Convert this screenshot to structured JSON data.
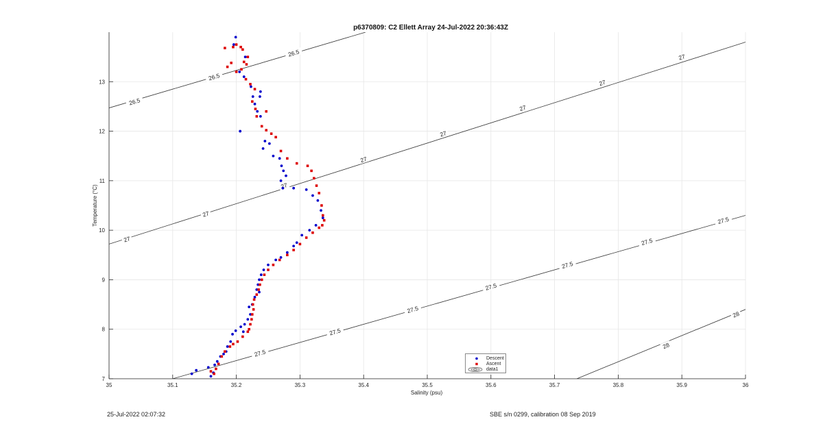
{
  "chart_data": {
    "type": "scatter",
    "title": "p6370809: C2 Ellett Array 24-Jul-2022 20:36:43Z",
    "xlabel": "Salinity (psu)",
    "ylabel": "Temperature (°C)",
    "xlim": [
      35,
      36
    ],
    "ylim": [
      7,
      14
    ],
    "x_ticks": [
      "35",
      "35.1",
      "35.2",
      "35.3",
      "35.4",
      "35.5",
      "35.6",
      "35.7",
      "35.8",
      "35.9",
      "36"
    ],
    "y_ticks": [
      "7",
      "8",
      "9",
      "10",
      "11",
      "12",
      "13"
    ],
    "grid": true,
    "legend_position": "bottom-center",
    "colors": {
      "descent": "#0000cc",
      "ascent": "#dd0000",
      "contour": "#333333",
      "grid": "#e6e6e6"
    },
    "series": [
      {
        "name": "Descent",
        "marker": "dot",
        "points": [
          [
            35.199,
            13.9
          ],
          [
            35.196,
            13.75
          ],
          [
            35.214,
            13.5
          ],
          [
            35.205,
            13.2
          ],
          [
            35.212,
            13.1
          ],
          [
            35.223,
            12.9
          ],
          [
            35.226,
            12.7
          ],
          [
            35.238,
            12.8
          ],
          [
            35.237,
            12.7
          ],
          [
            35.229,
            12.55
          ],
          [
            35.233,
            12.4
          ],
          [
            35.238,
            12.3
          ],
          [
            35.206,
            12.0
          ],
          [
            35.245,
            11.8
          ],
          [
            35.252,
            11.75
          ],
          [
            35.242,
            11.65
          ],
          [
            35.258,
            11.5
          ],
          [
            35.268,
            11.45
          ],
          [
            35.271,
            11.3
          ],
          [
            35.274,
            11.2
          ],
          [
            35.278,
            11.1
          ],
          [
            35.27,
            11.0
          ],
          [
            35.273,
            10.85
          ],
          [
            35.29,
            10.85
          ],
          [
            35.31,
            10.82
          ],
          [
            35.32,
            10.7
          ],
          [
            35.328,
            10.6
          ],
          [
            35.333,
            10.4
          ],
          [
            35.336,
            10.25
          ],
          [
            35.325,
            10.1
          ],
          [
            35.315,
            10.0
          ],
          [
            35.303,
            9.9
          ],
          [
            35.295,
            9.75
          ],
          [
            35.29,
            9.68
          ],
          [
            35.28,
            9.55
          ],
          [
            35.27,
            9.45
          ],
          [
            35.262,
            9.4
          ],
          [
            35.25,
            9.3
          ],
          [
            35.243,
            9.2
          ],
          [
            35.239,
            9.1
          ],
          [
            35.236,
            9.0
          ],
          [
            35.234,
            8.9
          ],
          [
            35.232,
            8.8
          ],
          [
            35.236,
            8.75
          ],
          [
            35.229,
            8.65
          ],
          [
            35.225,
            8.5
          ],
          [
            35.22,
            8.45
          ],
          [
            35.222,
            8.3
          ],
          [
            35.218,
            8.2
          ],
          [
            35.213,
            8.1
          ],
          [
            35.207,
            8.05
          ],
          [
            35.211,
            7.95
          ],
          [
            35.199,
            7.97
          ],
          [
            35.194,
            7.9
          ],
          [
            35.191,
            7.75
          ],
          [
            35.186,
            7.65
          ],
          [
            35.184,
            7.55
          ],
          [
            35.18,
            7.5
          ],
          [
            35.175,
            7.45
          ],
          [
            35.17,
            7.35
          ],
          [
            35.166,
            7.28
          ],
          [
            35.156,
            7.23
          ],
          [
            35.164,
            7.12
          ],
          [
            35.137,
            7.17
          ],
          [
            35.13,
            7.1
          ],
          [
            35.16,
            7.05
          ]
        ]
      },
      {
        "name": "Ascent",
        "marker": "square",
        "points": [
          [
            35.2,
            13.75
          ],
          [
            35.195,
            13.7
          ],
          [
            35.182,
            13.68
          ],
          [
            35.207,
            13.7
          ],
          [
            35.21,
            13.65
          ],
          [
            35.218,
            13.5
          ],
          [
            35.212,
            13.4
          ],
          [
            35.216,
            13.35
          ],
          [
            35.192,
            13.38
          ],
          [
            35.186,
            13.3
          ],
          [
            35.208,
            13.25
          ],
          [
            35.2,
            13.2
          ],
          [
            35.215,
            13.05
          ],
          [
            35.222,
            12.95
          ],
          [
            35.229,
            12.85
          ],
          [
            35.225,
            12.6
          ],
          [
            35.23,
            12.45
          ],
          [
            35.247,
            12.4
          ],
          [
            35.232,
            12.3
          ],
          [
            35.24,
            12.1
          ],
          [
            35.247,
            12.02
          ],
          [
            35.255,
            11.95
          ],
          [
            35.262,
            11.88
          ],
          [
            35.27,
            11.6
          ],
          [
            35.28,
            11.45
          ],
          [
            35.295,
            11.35
          ],
          [
            35.312,
            11.3
          ],
          [
            35.318,
            11.2
          ],
          [
            35.322,
            11.05
          ],
          [
            35.326,
            10.9
          ],
          [
            35.33,
            10.75
          ],
          [
            35.334,
            10.5
          ],
          [
            35.336,
            10.3
          ],
          [
            35.338,
            10.2
          ],
          [
            35.335,
            10.1
          ],
          [
            35.33,
            10.05
          ],
          [
            35.32,
            9.95
          ],
          [
            35.31,
            9.85
          ],
          [
            35.3,
            9.72
          ],
          [
            35.29,
            9.6
          ],
          [
            35.28,
            9.5
          ],
          [
            35.268,
            9.4
          ],
          [
            35.258,
            9.3
          ],
          [
            35.25,
            9.2
          ],
          [
            35.244,
            9.1
          ],
          [
            35.24,
            9.0
          ],
          [
            35.237,
            8.9
          ],
          [
            35.235,
            8.8
          ],
          [
            35.232,
            8.7
          ],
          [
            35.228,
            8.6
          ],
          [
            35.226,
            8.5
          ],
          [
            35.227,
            8.4
          ],
          [
            35.225,
            8.3
          ],
          [
            35.224,
            8.2
          ],
          [
            35.222,
            8.1
          ],
          [
            35.22,
            8.0
          ],
          [
            35.218,
            7.95
          ],
          [
            35.21,
            7.85
          ],
          [
            35.202,
            7.75
          ],
          [
            35.195,
            7.7
          ],
          [
            35.19,
            7.65
          ],
          [
            35.182,
            7.55
          ],
          [
            35.177,
            7.45
          ],
          [
            35.172,
            7.3
          ],
          [
            35.168,
            7.2
          ],
          [
            35.165,
            7.1
          ],
          [
            35.16,
            7.15
          ]
        ]
      }
    ],
    "legend_extra": "data1",
    "contours": [
      {
        "level": "26.5",
        "points": [
          [
            35,
            12.47
          ],
          [
            35.403,
            14.0
          ]
        ]
      },
      {
        "level": "27",
        "points": [
          [
            35,
            9.72
          ],
          [
            36,
            13.8
          ]
        ]
      },
      {
        "level": "27.5",
        "points": [
          [
            35.1,
            7.0
          ],
          [
            36,
            10.3
          ]
        ]
      },
      {
        "level": "28",
        "points": [
          [
            35.735,
            7.0
          ],
          [
            36,
            8.4
          ]
        ]
      }
    ],
    "contour_labels": [
      {
        "text": "26.5",
        "x": 35.04,
        "y": 12.6
      },
      {
        "text": "26.5",
        "x": 35.165,
        "y": 13.1
      },
      {
        "text": "26.5",
        "x": 35.29,
        "y": 13.58
      },
      {
        "text": "27",
        "x": 35.028,
        "y": 9.82
      },
      {
        "text": "27",
        "x": 35.152,
        "y": 10.33
      },
      {
        "text": "27",
        "x": 35.275,
        "y": 10.9
      },
      {
        "text": "27",
        "x": 35.4,
        "y": 11.43
      },
      {
        "text": "27",
        "x": 35.525,
        "y": 11.95
      },
      {
        "text": "27",
        "x": 35.65,
        "y": 12.47
      },
      {
        "text": "27",
        "x": 35.775,
        "y": 12.98
      },
      {
        "text": "27",
        "x": 35.9,
        "y": 13.5
      },
      {
        "text": "27.5",
        "x": 35.237,
        "y": 7.52
      },
      {
        "text": "27.5",
        "x": 35.355,
        "y": 7.95
      },
      {
        "text": "27.5",
        "x": 35.477,
        "y": 8.4
      },
      {
        "text": "27.5",
        "x": 35.6,
        "y": 8.86
      },
      {
        "text": "27.5",
        "x": 35.72,
        "y": 9.3
      },
      {
        "text": "27.5",
        "x": 35.845,
        "y": 9.77
      },
      {
        "text": "27.5",
        "x": 35.965,
        "y": 10.2
      },
      {
        "text": "28",
        "x": 35.875,
        "y": 7.67
      },
      {
        "text": "28",
        "x": 35.985,
        "y": 8.3
      }
    ]
  },
  "footer": {
    "timestamp": "25-Jul-2022 02:07:32",
    "calibration": "SBE s/n 0299, calibration 08 Sep 2019"
  }
}
